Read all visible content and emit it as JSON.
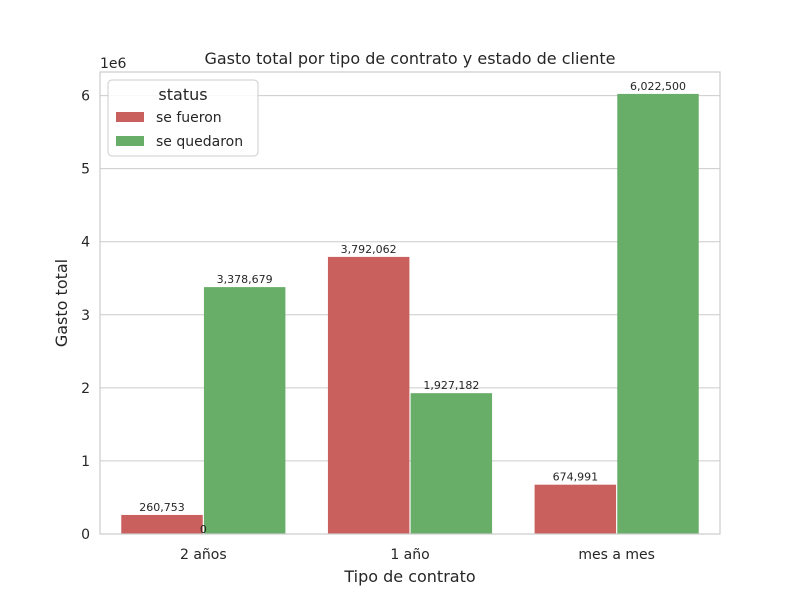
{
  "chart_data": {
    "type": "bar",
    "title": "Gasto total por tipo de contrato y estado de cliente",
    "xlabel": "Tipo de contrato",
    "ylabel": "Gasto total",
    "y_offset_label": "1e6",
    "categories": [
      "2 años",
      "1 año",
      "mes a mes"
    ],
    "series": [
      {
        "name": "se fueron",
        "color": "#c9605d",
        "values": [
          260753,
          3792062,
          674991
        ],
        "labels": [
          "260,753",
          "3,792,062",
          "674,991"
        ]
      },
      {
        "name": "se quedaron",
        "color": "#68ad68",
        "values": [
          3378679,
          1927182,
          6022500
        ],
        "labels": [
          "3,378,679",
          "1,927,182",
          "6,022,500"
        ]
      }
    ],
    "extra_labels": [
      "0"
    ],
    "ylim": [
      0,
      6322500
    ],
    "yticks": [
      0,
      1,
      2,
      3,
      4,
      5,
      6
    ],
    "ytick_scale": 1000000,
    "grid": true,
    "legend": {
      "title": "status",
      "placement": "top-left"
    }
  }
}
